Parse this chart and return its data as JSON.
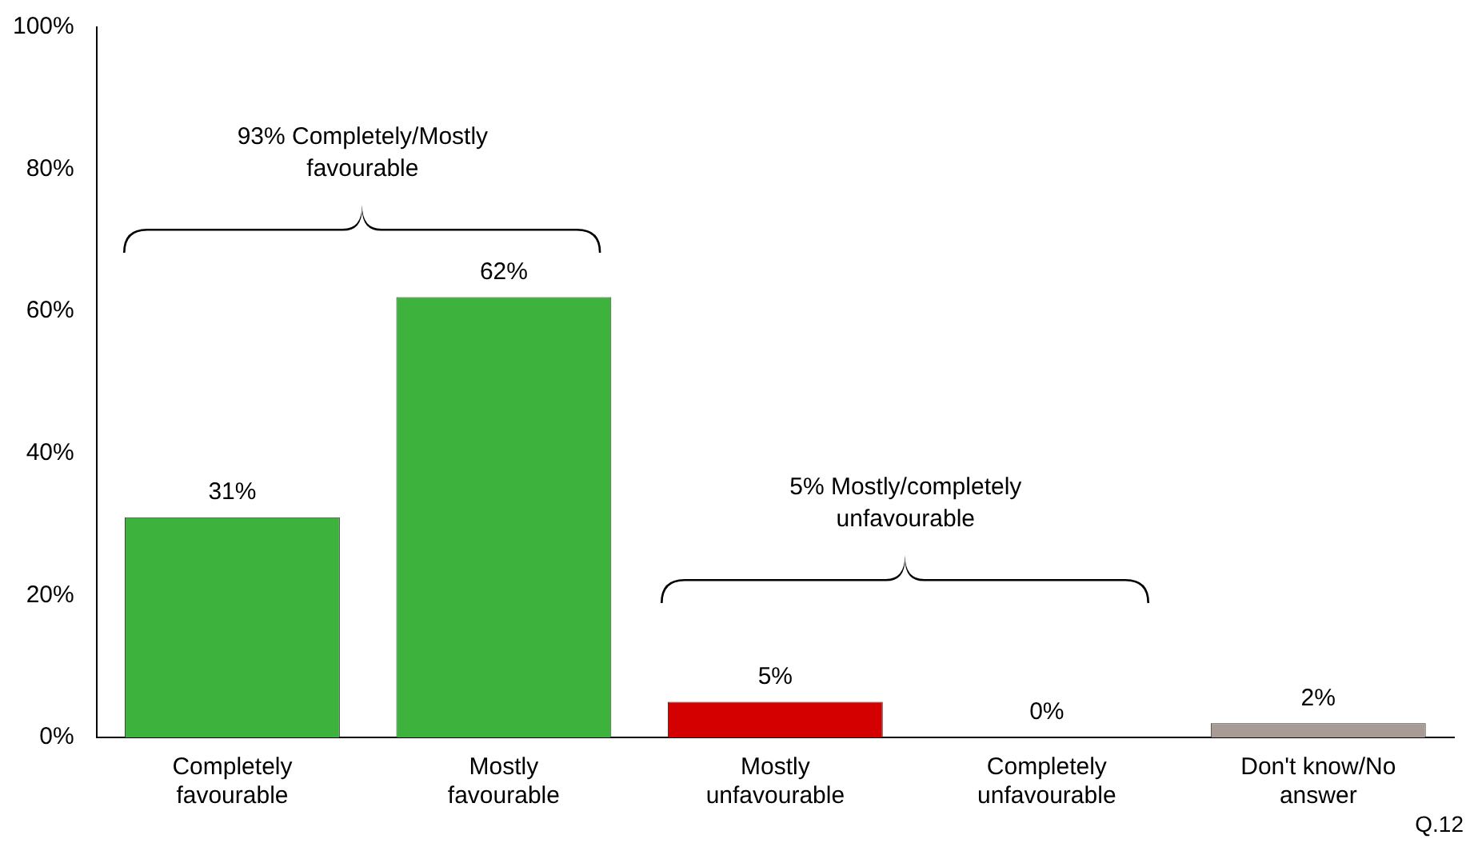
{
  "chart_data": {
    "type": "bar",
    "categories": [
      "Completely favourable",
      "Mostly favourable",
      "Mostly unfavourable",
      "Completely unfavourable",
      "Don't know/No answer"
    ],
    "values": [
      31,
      62,
      5,
      0,
      2
    ],
    "colors": [
      "#3db33d",
      "#3db33d",
      "#d40000",
      "#d40000",
      "#a89a94"
    ],
    "value_labels": [
      "31%",
      "62%",
      "5%",
      "0%",
      "2%"
    ],
    "ylim": [
      0,
      100
    ],
    "yticks": [
      {
        "value": 0,
        "label": "0%"
      },
      {
        "value": 20,
        "label": "20%"
      },
      {
        "value": 40,
        "label": "40%"
      },
      {
        "value": 60,
        "label": "60%"
      },
      {
        "value": 80,
        "label": "80%"
      },
      {
        "value": 100,
        "label": "100%"
      }
    ],
    "grid": false,
    "legend": false,
    "annotations": [
      "93% Completely/Mostly favourable",
      "5% Mostly/completely unfavourable",
      "Q.12"
    ]
  }
}
